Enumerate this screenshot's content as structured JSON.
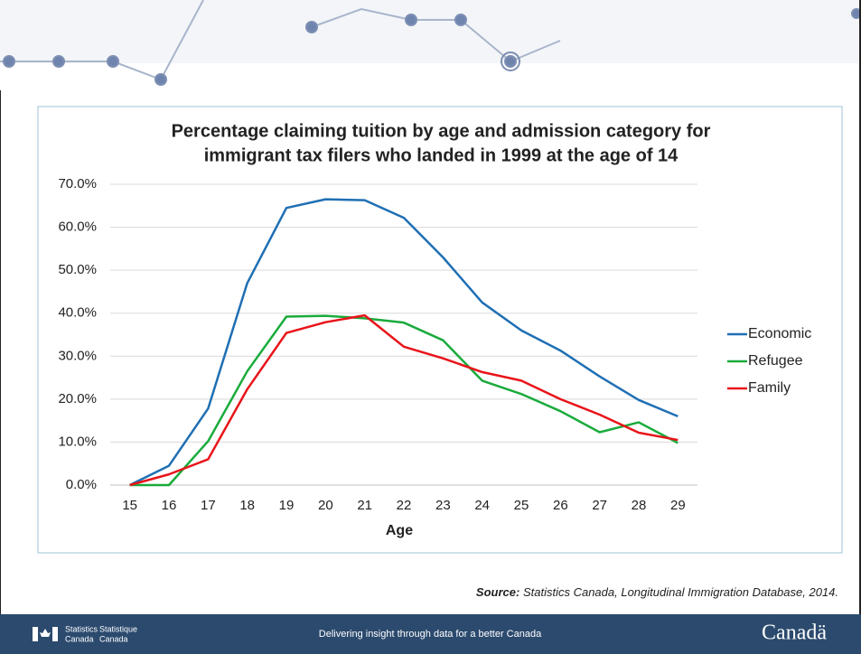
{
  "chart_data": {
    "type": "line",
    "title": [
      "Percentage claiming tuition by age and admission category for",
      "immigrant tax filers who landed in 1999 at the age of 14"
    ],
    "x_label": "Age",
    "categories": [
      "15",
      "16",
      "17",
      "18",
      "19",
      "20",
      "21",
      "22",
      "23",
      "24",
      "25",
      "26",
      "27",
      "28",
      "29"
    ],
    "series": [
      {
        "name": "Economic",
        "color": "#1f6fb4",
        "values": [
          0,
          4.5,
          17.8,
          47,
          64.5,
          66.5,
          66.3,
          62.2,
          53,
          42.5,
          36,
          31.3,
          25.3,
          19.8,
          16
        ]
      },
      {
        "name": "Refugee",
        "color": "#1aab3c",
        "values": [
          0,
          0,
          10.2,
          26.5,
          39.2,
          39.4,
          38.8,
          37.8,
          33.7,
          24.3,
          21.2,
          17.2,
          12.3,
          14.6,
          9.8
        ]
      },
      {
        "name": "Family",
        "color": "#e8141a",
        "values": [
          0,
          2.5,
          6,
          22.3,
          35.4,
          37.9,
          39.5,
          32.2,
          29.5,
          26.3,
          24.3,
          20,
          16.4,
          12.2,
          10.5
        ]
      }
    ],
    "ylim": [
      0,
      70
    ],
    "yticks": [
      {
        "value": 0,
        "label": "0.0%"
      },
      {
        "value": 10,
        "label": "10.0%"
      },
      {
        "value": 20,
        "label": "20.0%"
      },
      {
        "value": 30,
        "label": "30.0%"
      },
      {
        "value": 40,
        "label": "40.0%"
      },
      {
        "value": 50,
        "label": "50.0%"
      },
      {
        "value": 60,
        "label": "60.0%"
      },
      {
        "value": 70,
        "label": "70.0%"
      }
    ],
    "grid": true,
    "legend": "right"
  },
  "source_label": "Source:",
  "source_text": "Statistics Canada, Longitudinal Immigration Database, 2014.",
  "footer": {
    "agency_en": [
      "Statistics",
      "Canada"
    ],
    "agency_fr": [
      "Statistique",
      "Canada"
    ],
    "tagline": "Delivering insight through data for a better Canada",
    "wordmark": "Canadä"
  }
}
